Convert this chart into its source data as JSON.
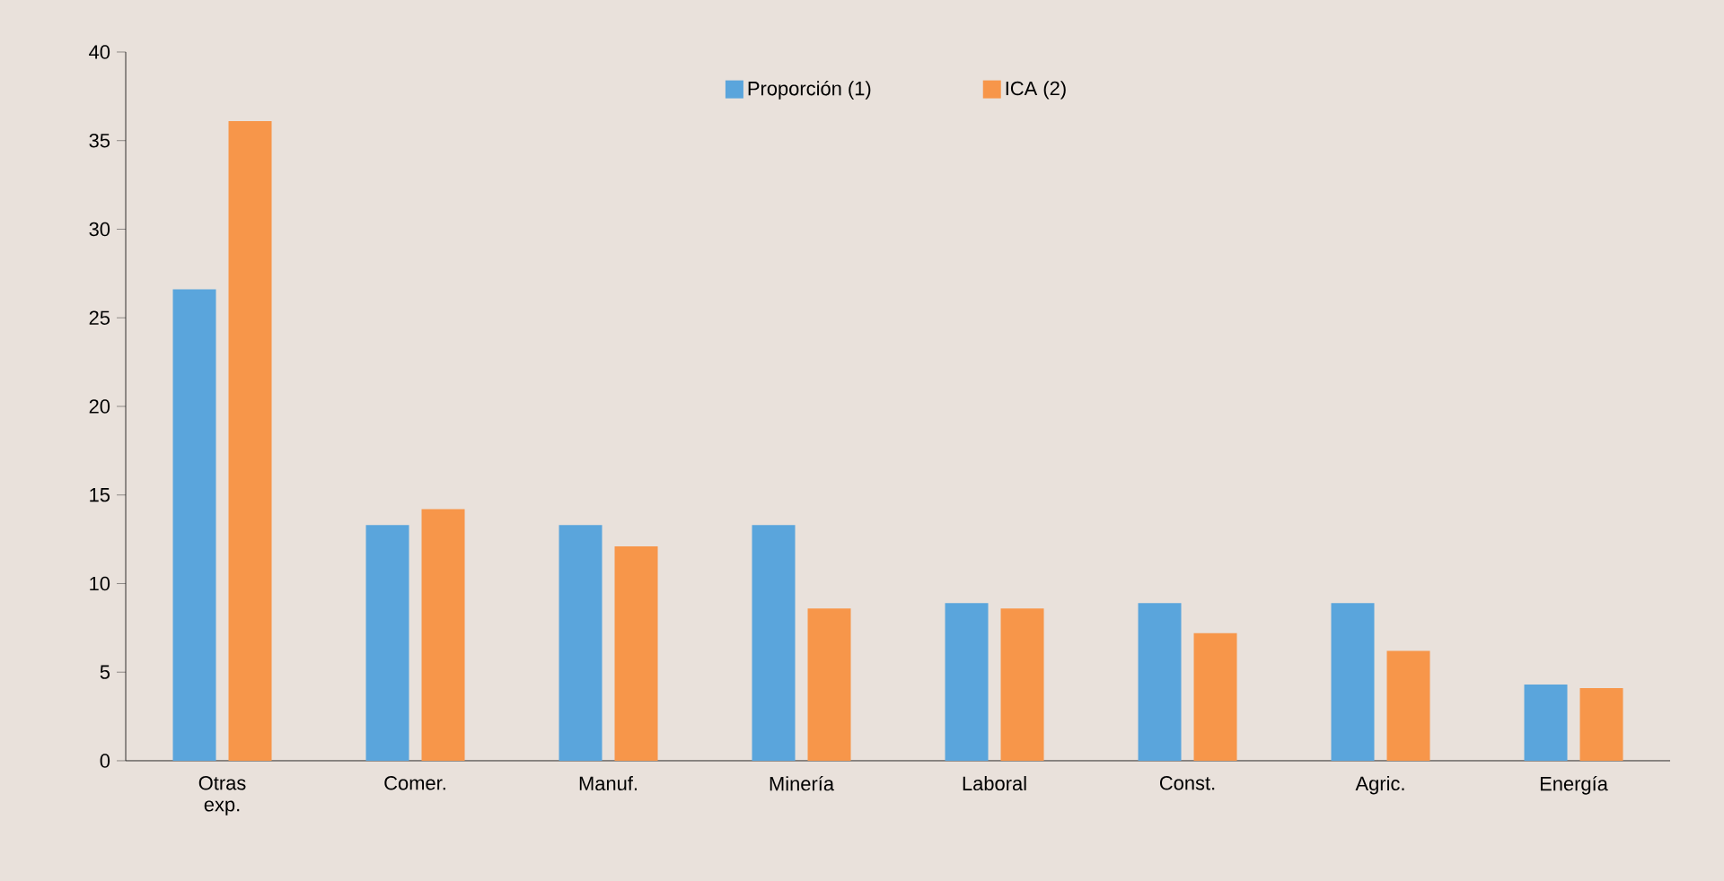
{
  "chart_data": {
    "type": "bar",
    "categories": [
      "Otras exp.",
      "Comer.",
      "Manuf.",
      "Minería",
      "Laboral",
      "Const.",
      "Agric.",
      "Energía"
    ],
    "series": [
      {
        "name": "Proporción (1)",
        "color": "#5aa5dc",
        "values": [
          26.6,
          13.3,
          13.3,
          13.3,
          8.9,
          8.9,
          8.9,
          4.3
        ]
      },
      {
        "name": "ICA (2)",
        "color": "#f7964a",
        "values": [
          36.1,
          14.2,
          12.1,
          8.6,
          8.6,
          7.2,
          6.2,
          4.1
        ]
      }
    ],
    "ylim": [
      0,
      40
    ],
    "yticks": [
      0,
      5,
      10,
      15,
      20,
      25,
      30,
      35,
      40
    ],
    "grid": false,
    "legend": "top"
  }
}
